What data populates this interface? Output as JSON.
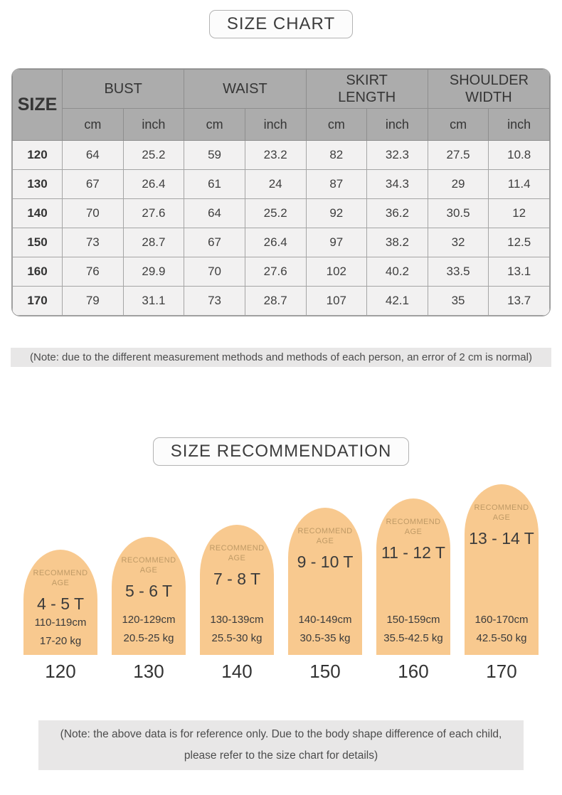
{
  "colors": {
    "arch_orange": "#F8C98F",
    "recommend_text_tan": "#BF9A66",
    "table_header_gray": "#ACACAC",
    "table_row_bg": "#F2F1F1",
    "note_bg": "#E8E7E7",
    "text_dark": "#3B3B3B"
  },
  "size_chart": {
    "title": "SIZE CHART",
    "table": {
      "corner_label": "SIZE",
      "groups": [
        "BUST",
        "WAIST",
        "SKIRT LENGTH",
        "SHOULDER WIDTH"
      ],
      "sub_headers": [
        "cm",
        "inch",
        "cm",
        "inch",
        "cm",
        "inch",
        "cm",
        "inch"
      ],
      "rows": [
        {
          "size": "120",
          "values": [
            "64",
            "25.2",
            "59",
            "23.2",
            "82",
            "32.3",
            "27.5",
            "10.8"
          ]
        },
        {
          "size": "130",
          "values": [
            "67",
            "26.4",
            "61",
            "24",
            "87",
            "34.3",
            "29",
            "11.4"
          ]
        },
        {
          "size": "140",
          "values": [
            "70",
            "27.6",
            "64",
            "25.2",
            "92",
            "36.2",
            "30.5",
            "12"
          ]
        },
        {
          "size": "150",
          "values": [
            "73",
            "28.7",
            "67",
            "26.4",
            "97",
            "38.2",
            "32",
            "12.5"
          ]
        },
        {
          "size": "160",
          "values": [
            "76",
            "29.9",
            "70",
            "27.6",
            "102",
            "40.2",
            "33.5",
            "13.1"
          ]
        },
        {
          "size": "170",
          "values": [
            "79",
            "31.1",
            "73",
            "28.7",
            "107",
            "42.1",
            "35",
            "13.7"
          ]
        }
      ]
    },
    "note": "(Note: due to the different measurement methods and methods of each person, an error of 2 cm is normal)"
  },
  "size_recommendation": {
    "title": "SIZE RECOMMENDATION",
    "items": [
      {
        "recommend_age": "RECOMMEND AGE",
        "age_range": "4 - 5 T",
        "height_range": "110-119cm",
        "weight_range": "17-20 kg",
        "size": "120"
      },
      {
        "recommend_age": "RECOMMEND AGE",
        "age_range": "5 - 6 T",
        "height_range": "120-129cm",
        "weight_range": "20.5-25 kg",
        "size": "130"
      },
      {
        "recommend_age": "RECOMMEND AGE",
        "age_range": "7 - 8 T",
        "height_range": "130-139cm",
        "weight_range": "25.5-30 kg",
        "size": "140"
      },
      {
        "recommend_age": "RECOMMEND AGE",
        "age_range": "9 - 10 T",
        "height_range": "140-149cm",
        "weight_range": "30.5-35 kg",
        "size": "150"
      },
      {
        "recommend_age": "RECOMMEND AGE",
        "age_range": "11 - 12 T",
        "height_range": "150-159cm",
        "weight_range": "35.5-42.5 kg",
        "size": "160"
      },
      {
        "recommend_age": "RECOMMEND AGE",
        "age_range": "13 - 14 T",
        "height_range": "160-170cm",
        "weight_range": "42.5-50 kg",
        "size": "170"
      }
    ],
    "note_line1": "(Note: the above data is for reference only. Due to the body shape difference of each child,",
    "note_line2": "please refer to the size chart for details)"
  },
  "chart_data": [
    {
      "type": "table",
      "title": "SIZE CHART",
      "columns": [
        "SIZE",
        "BUST cm",
        "BUST inch",
        "WAIST cm",
        "WAIST inch",
        "SKIRT LENGTH cm",
        "SKIRT LENGTH inch",
        "SHOULDER WIDTH cm",
        "SHOULDER WIDTH inch"
      ],
      "rows": [
        [
          120,
          64,
          25.2,
          59,
          23.2,
          82,
          32.3,
          27.5,
          10.8
        ],
        [
          130,
          67,
          26.4,
          61,
          24,
          87,
          34.3,
          29,
          11.4
        ],
        [
          140,
          70,
          27.6,
          64,
          25.2,
          92,
          36.2,
          30.5,
          12
        ],
        [
          150,
          73,
          28.7,
          67,
          26.4,
          97,
          38.2,
          32,
          12.5
        ],
        [
          160,
          76,
          29.9,
          70,
          27.6,
          102,
          40.2,
          33.5,
          13.1
        ],
        [
          170,
          79,
          31.1,
          73,
          28.7,
          107,
          42.1,
          35,
          13.7
        ]
      ]
    },
    {
      "type": "bar",
      "title": "SIZE RECOMMENDATION",
      "categories": [
        "120",
        "130",
        "140",
        "150",
        "160",
        "170"
      ],
      "ages": [
        "4 - 5 T",
        "5 - 6 T",
        "7 - 8 T",
        "9 - 10 T",
        "11 - 12 T",
        "13 - 14 T"
      ],
      "height_ranges_cm": [
        "110-119",
        "120-129",
        "130-139",
        "140-149",
        "150-159",
        "160-170"
      ],
      "weight_ranges_kg": [
        "17-20",
        "20.5-25",
        "25.5-30",
        "30.5-35",
        "35.5-42.5",
        "42.5-50"
      ],
      "legend_position": "none",
      "grid": false
    }
  ]
}
